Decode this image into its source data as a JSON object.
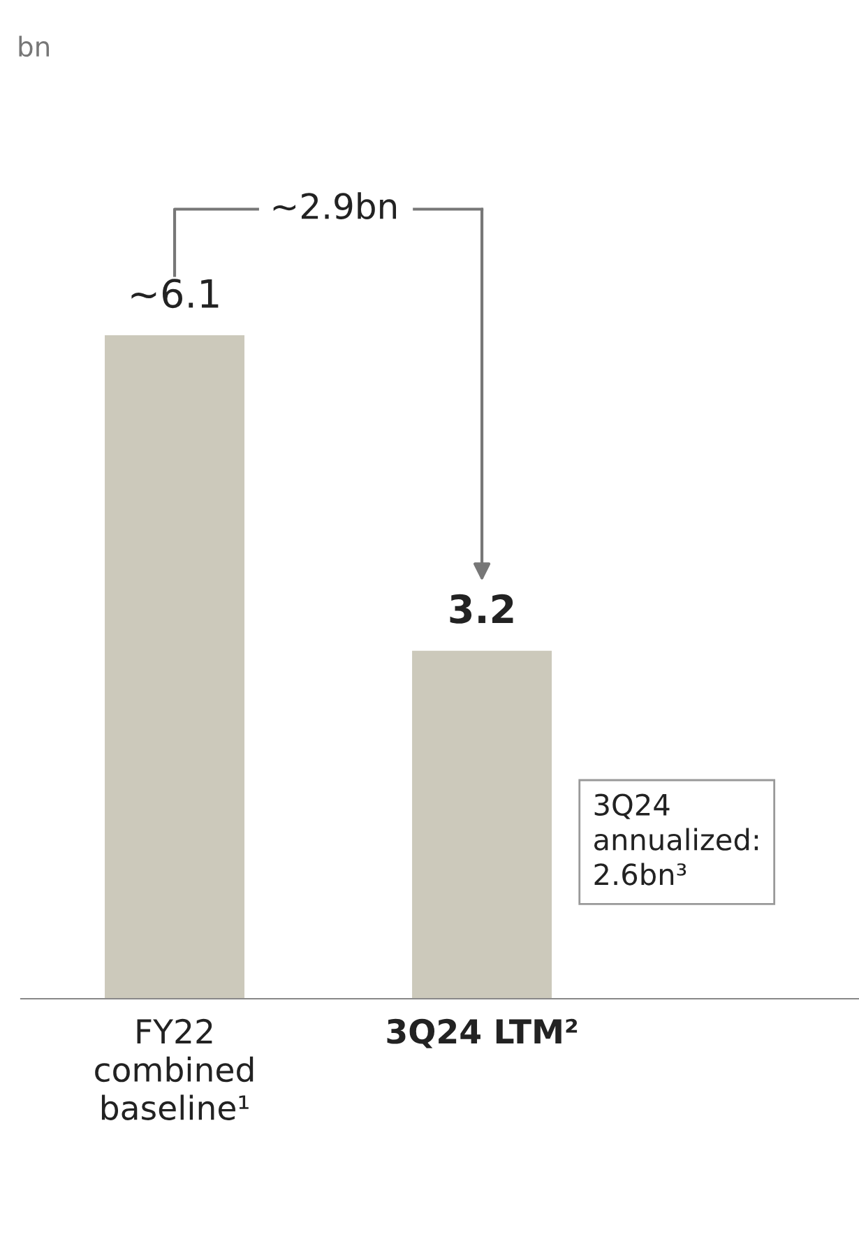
{
  "chart_data": {
    "type": "bar",
    "categories": [
      "FY22 combined baseline¹",
      "3Q24 LTM²"
    ],
    "values": [
      6.1,
      3.2
    ],
    "color": "#ccc9bb",
    "value_labels": [
      "~6.1",
      "3.2"
    ],
    "annotations": [
      "bn",
      "~2.9bn",
      "3Q24 annualized: 2.6bn³"
    ]
  }
}
